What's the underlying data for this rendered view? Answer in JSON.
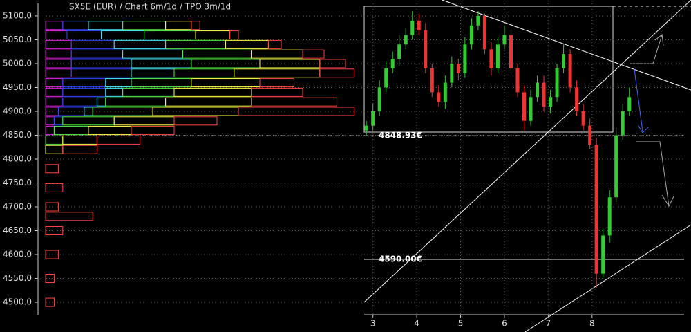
{
  "chart_data": {
    "type": "candlestick",
    "title": "SX5E (EUR) /  Chart 6m/1d / TPO 3m/1d",
    "ylim": [
      4474,
      5126
    ],
    "yticks": [
      {
        "value": 5100,
        "label": "5100.0"
      },
      {
        "value": 5050,
        "label": "5050.0"
      },
      {
        "value": 5000,
        "label": "5000.0"
      },
      {
        "value": 4950,
        "label": "4950.0"
      },
      {
        "value": 4900,
        "label": "4900.0"
      },
      {
        "value": 4850,
        "label": "4850.0"
      },
      {
        "value": 4800,
        "label": "4800.0"
      },
      {
        "value": 4750,
        "label": "4750.0"
      },
      {
        "value": 4700,
        "label": "4700.0"
      },
      {
        "value": 4650,
        "label": "4650.0"
      },
      {
        "value": 4600,
        "label": "4600.0"
      },
      {
        "value": 4550,
        "label": "4550.0"
      },
      {
        "value": 4500,
        "label": "4500.0"
      }
    ],
    "xlim": [
      2.8,
      10.1
    ],
    "xticks": [
      3,
      4,
      5,
      6,
      7,
      8
    ],
    "up_color": "#33cc33",
    "down_color": "#ee3333",
    "x": [
      2.85,
      3.0,
      3.15,
      3.3,
      3.45,
      3.6,
      3.75,
      3.9,
      4.05,
      4.2,
      4.35,
      4.5,
      4.65,
      4.8,
      4.95,
      5.1,
      5.25,
      5.4,
      5.55,
      5.7,
      5.85,
      6.0,
      6.15,
      6.3,
      6.45,
      6.6,
      6.75,
      6.9,
      7.05,
      7.2,
      7.35,
      7.5,
      7.65,
      7.8,
      7.95,
      8.1,
      8.25,
      8.4,
      8.55,
      8.7,
      8.85
    ],
    "open": [
      4860,
      4870,
      4900,
      4950,
      4990,
      5010,
      5040,
      5060,
      5090,
      5070,
      4990,
      4940,
      4920,
      4960,
      5000,
      4980,
      5040,
      5080,
      5100,
      5030,
      4990,
      5040,
      5060,
      4990,
      4940,
      4880,
      4930,
      4960,
      4910,
      4930,
      4990,
      5020,
      4950,
      4900,
      4870,
      4830,
      4560,
      4640,
      4720,
      4850,
      4900
    ],
    "high": [
      4880,
      4915,
      4965,
      5005,
      5025,
      5060,
      5075,
      5110,
      5105,
      5085,
      5000,
      4955,
      4975,
      5015,
      5010,
      5055,
      5095,
      5110,
      5105,
      5045,
      5055,
      5080,
      5070,
      5000,
      4955,
      4945,
      4975,
      4975,
      4945,
      5000,
      5040,
      5030,
      4965,
      4915,
      4885,
      4845,
      4655,
      4735,
      4865,
      4915,
      4950
    ],
    "low": [
      4850,
      4860,
      4890,
      4940,
      4980,
      4995,
      5030,
      5050,
      5060,
      4980,
      4930,
      4910,
      4905,
      4950,
      4965,
      4970,
      5030,
      5070,
      5020,
      4975,
      4980,
      5030,
      4980,
      4930,
      4860,
      4870,
      4920,
      4900,
      4895,
      4920,
      4980,
      4940,
      4890,
      4860,
      4820,
      4530,
      4550,
      4625,
      4710,
      4840,
      4890
    ],
    "close": [
      4870,
      4900,
      4950,
      4990,
      5010,
      5040,
      5060,
      5090,
      5070,
      4990,
      4940,
      4920,
      4960,
      5000,
      4980,
      5040,
      5080,
      5100,
      5030,
      4990,
      5040,
      5060,
      4990,
      4940,
      4880,
      4930,
      4960,
      4910,
      4930,
      4990,
      5020,
      4950,
      4900,
      4870,
      4830,
      4560,
      4640,
      4720,
      4850,
      4900,
      4930
    ],
    "levels": [
      {
        "value": 4848.93,
        "label": "4848.93€"
      },
      {
        "value": 4590,
        "label": "4590.00€"
      }
    ],
    "profile": {
      "xlim": [
        0,
        75
      ],
      "prices": [
        5080,
        5060,
        5040,
        5020,
        5000,
        4980,
        4960,
        4940,
        4920,
        4900,
        4880,
        4860,
        4840,
        4820,
        4780,
        4740,
        4700,
        4680,
        4650,
        4600,
        4550,
        4500
      ],
      "series": [
        {
          "color": "#dd22dd",
          "values": [
            4,
            5,
            6,
            6,
            6,
            6,
            4,
            4,
            4,
            3,
            2,
            2,
            0,
            0,
            0,
            0,
            0,
            0,
            0,
            0,
            0,
            0
          ]
        },
        {
          "color": "#3344ff",
          "values": [
            6,
            8,
            10,
            12,
            14,
            14,
            10,
            10,
            8,
            6,
            2,
            0,
            0,
            0,
            0,
            0,
            0,
            0,
            0,
            0,
            0,
            0
          ]
        },
        {
          "color": "#44eeff",
          "values": [
            8,
            10,
            12,
            14,
            14,
            10,
            6,
            4,
            2,
            2,
            0,
            0,
            0,
            0,
            0,
            0,
            0,
            0,
            0,
            0,
            0,
            0
          ]
        },
        {
          "color": "#55ee44",
          "values": [
            10,
            12,
            14,
            16,
            16,
            14,
            14,
            12,
            14,
            14,
            12,
            8,
            4,
            0,
            0,
            0,
            0,
            0,
            0,
            0,
            0,
            0
          ]
        },
        {
          "color": "#ffff44",
          "values": [
            6,
            8,
            10,
            12,
            14,
            20,
            16,
            18,
            20,
            20,
            14,
            10,
            8,
            4,
            0,
            0,
            0,
            0,
            0,
            0,
            0,
            0
          ]
        },
        {
          "color": "#ff4444",
          "values": [
            2,
            2,
            3,
            5,
            6,
            8,
            8,
            12,
            20,
            27,
            10,
            10,
            10,
            8,
            3,
            4,
            3,
            11,
            4,
            3,
            2,
            2
          ]
        }
      ]
    }
  }
}
